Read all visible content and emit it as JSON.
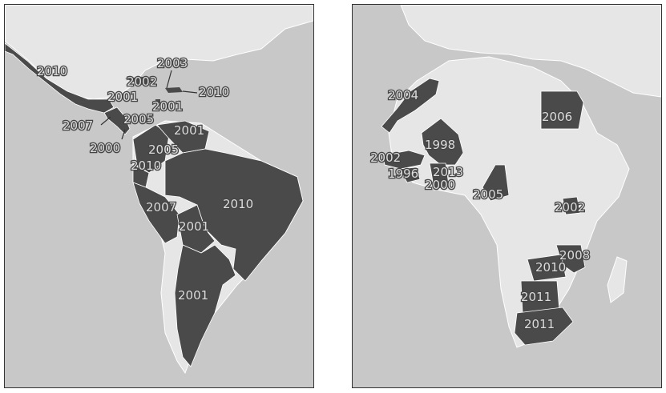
{
  "colors": {
    "water": "#c8c8c8",
    "land": "#e6e6e6",
    "highlighted": "#4a4a4a",
    "border": "#ffffff",
    "panel_frame": "#333333"
  },
  "maps": [
    {
      "region": "Latin America",
      "labels": [
        "2010",
        "2003",
        "2002",
        "2010",
        "2001",
        "2001",
        "2007",
        "2005",
        "2001",
        "2000",
        "2005",
        "2010",
        "2010",
        "2007",
        "2001",
        "2001"
      ]
    },
    {
      "region": "Africa",
      "labels": [
        "2004",
        "2006",
        "1998",
        "2002",
        "1996",
        "2013",
        "2000",
        "2005",
        "2002",
        "2008",
        "2010",
        "2011",
        "2011"
      ]
    }
  ]
}
